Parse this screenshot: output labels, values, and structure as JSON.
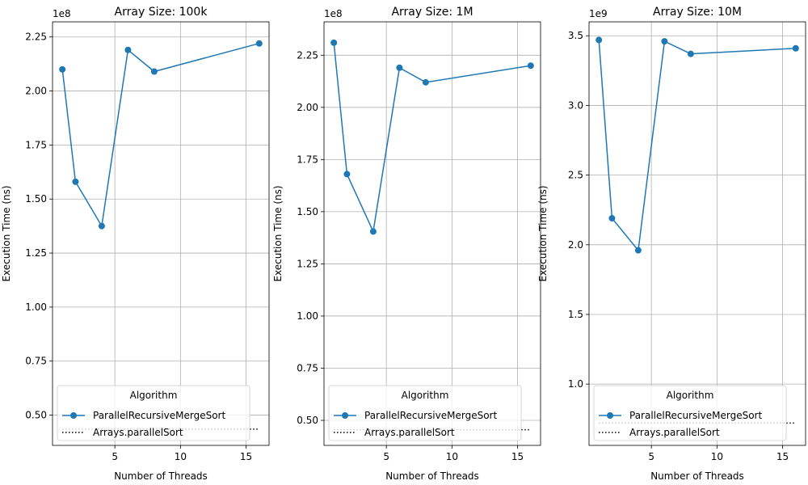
{
  "chart_data": [
    {
      "type": "line",
      "title": "Array Size: 100k",
      "xlabel": "Number of Threads",
      "ylabel": "Execution Time (ns)",
      "y_offset_label": "1e8",
      "xlim": [
        0.25,
        16.75
      ],
      "ylim": [
        36000000.0,
        232000000.0
      ],
      "xticks": [
        5,
        10,
        15
      ],
      "yticks": [
        50000000.0,
        75000000.0,
        100000000.0,
        125000000.0,
        150000000.0,
        175000000.0,
        200000000.0,
        225000000.0
      ],
      "ytick_labels": [
        "0.50",
        "0.75",
        "1.00",
        "1.25",
        "1.50",
        "1.75",
        "2.00",
        "2.25"
      ],
      "grid": true,
      "legend": {
        "title": "Algorithm",
        "placement": "lower-left"
      },
      "series": [
        {
          "name": "ParallelRecursiveMergeSort",
          "style": "solid-marker",
          "color": "#1f77b4",
          "x": [
            1,
            2,
            4,
            6,
            8,
            16
          ],
          "y": [
            210000000.0,
            158000000.0,
            137500000.0,
            219000000.0,
            209000000.0,
            222000000.0
          ]
        },
        {
          "name": "Arrays.parallelSort",
          "style": "dotted",
          "color": "#000000",
          "x": [
            1,
            16
          ],
          "y": [
            43500000.0,
            43500000.0
          ]
        }
      ]
    },
    {
      "type": "line",
      "title": "Array Size: 1M",
      "xlabel": "Number of Threads",
      "ylabel": "Execution Time (ns)",
      "y_offset_label": "1e8",
      "xlim": [
        0.25,
        16.75
      ],
      "ylim": [
        38000000.0,
        241000000.0
      ],
      "xticks": [
        5,
        10,
        15
      ],
      "yticks": [
        50000000.0,
        75000000.0,
        100000000.0,
        125000000.0,
        150000000.0,
        175000000.0,
        200000000.0,
        225000000.0
      ],
      "ytick_labels": [
        "0.50",
        "0.75",
        "1.00",
        "1.25",
        "1.50",
        "1.75",
        "2.00",
        "2.25"
      ],
      "grid": true,
      "legend": {
        "title": "Algorithm",
        "placement": "lower-left"
      },
      "series": [
        {
          "name": "ParallelRecursiveMergeSort",
          "style": "solid-marker",
          "color": "#1f77b4",
          "x": [
            1,
            2,
            4,
            6,
            8,
            16
          ],
          "y": [
            231000000.0,
            168000000.0,
            140500000.0,
            219000000.0,
            212000000.0,
            220000000.0
          ]
        },
        {
          "name": "Arrays.parallelSort",
          "style": "dotted",
          "color": "#000000",
          "x": [
            1,
            16
          ],
          "y": [
            45500000.0,
            45500000.0
          ]
        }
      ]
    },
    {
      "type": "line",
      "title": "Array Size: 10M",
      "xlabel": "Number of Threads",
      "ylabel": "Execution Time (ns)",
      "y_offset_label": "1e9",
      "xlim": [
        0.25,
        16.75
      ],
      "ylim": [
        560000000.0,
        3600000000.0
      ],
      "xticks": [
        5,
        10,
        15
      ],
      "yticks": [
        1000000000.0,
        1500000000.0,
        2000000000.0,
        2500000000.0,
        3000000000.0,
        3500000000.0
      ],
      "ytick_labels": [
        "1.0",
        "1.5",
        "2.0",
        "2.5",
        "3.0",
        "3.5"
      ],
      "grid": true,
      "legend": {
        "title": "Algorithm",
        "placement": "lower-left"
      },
      "series": [
        {
          "name": "ParallelRecursiveMergeSort",
          "style": "solid-marker",
          "color": "#1f77b4",
          "x": [
            1,
            2,
            4,
            6,
            8,
            16
          ],
          "y": [
            3470000000.0,
            2190000000.0,
            1960000000.0,
            3460000000.0,
            3370000000.0,
            3410000000.0
          ]
        },
        {
          "name": "Arrays.parallelSort",
          "style": "dotted",
          "color": "#000000",
          "x": [
            1,
            16
          ],
          "y": [
            720000000.0,
            720000000.0
          ]
        }
      ]
    }
  ]
}
